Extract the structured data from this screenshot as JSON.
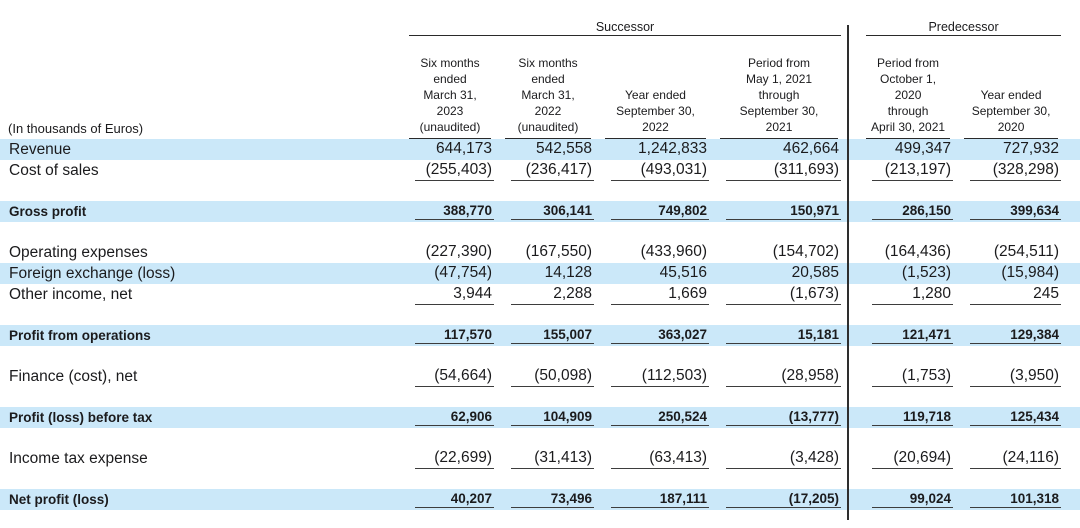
{
  "document": {
    "type": "income-statement-table",
    "unit_label": "(In thousands of Euros)"
  },
  "colors": {
    "row_highlight": "#cbe8f9",
    "rule": "#2a2a2a",
    "text": "#1b1b1d"
  },
  "table": {
    "group_headers": [
      {
        "label": "Successor",
        "span": 4
      },
      {
        "label": "Predecessor",
        "span": 2
      }
    ],
    "columns": [
      {
        "header": "Six months\nended\nMarch 31,\n2023\n(unaudited)"
      },
      {
        "header": "Six months\nended\nMarch 31,\n2022\n(unaudited)"
      },
      {
        "header": "Year ended\nSeptember 30,\n2022"
      },
      {
        "header": "Period from\nMay 1, 2021\nthrough\nSeptember 30,\n2021"
      },
      {
        "header": "Period from\nOctober 1, 2020\nthrough\nApril 30, 2021"
      },
      {
        "header": "Year ended\nSeptember 30,\n2020"
      }
    ],
    "rows": [
      {
        "label": "Revenue",
        "values": [
          "644,173",
          "542,558",
          "1,242,833",
          "462,664",
          "499,347",
          "727,932"
        ],
        "highlight": true
      },
      {
        "label": "Cost of sales",
        "values": [
          "(255,403)",
          "(236,417)",
          "(493,031)",
          "(311,693)",
          "(213,197)",
          "(328,298)"
        ],
        "underline": true
      },
      {
        "spacer": true
      },
      {
        "label": "Gross profit",
        "values": [
          "388,770",
          "306,141",
          "749,802",
          "150,971",
          "286,150",
          "399,634"
        ],
        "highlight": true,
        "bold": true,
        "underline": true
      },
      {
        "spacer": true
      },
      {
        "label": "Operating expenses",
        "values": [
          "(227,390)",
          "(167,550)",
          "(433,960)",
          "(154,702)",
          "(164,436)",
          "(254,511)"
        ]
      },
      {
        "label": "Foreign exchange (loss)",
        "values": [
          "(47,754)",
          "14,128",
          "45,516",
          "20,585",
          "(1,523)",
          "(15,984)"
        ],
        "highlight": true
      },
      {
        "label": "Other income, net",
        "values": [
          "3,944",
          "2,288",
          "1,669",
          "(1,673)",
          "1,280",
          "245"
        ],
        "underline": true
      },
      {
        "spacer": true
      },
      {
        "label": "Profit from operations",
        "values": [
          "117,570",
          "155,007",
          "363,027",
          "15,181",
          "121,471",
          "129,384"
        ],
        "highlight": true,
        "bold": true,
        "underline": true
      },
      {
        "spacer": true
      },
      {
        "label": "Finance (cost), net",
        "values": [
          "(54,664)",
          "(50,098)",
          "(112,503)",
          "(28,958)",
          "(1,753)",
          "(3,950)"
        ],
        "underline": true
      },
      {
        "spacer": true
      },
      {
        "label": "Profit (loss) before tax",
        "values": [
          "62,906",
          "104,909",
          "250,524",
          "(13,777)",
          "119,718",
          "125,434"
        ],
        "highlight": true,
        "bold": true,
        "underline": true
      },
      {
        "spacer": true
      },
      {
        "label": "Income tax expense",
        "values": [
          "(22,699)",
          "(31,413)",
          "(63,413)",
          "(3,428)",
          "(20,694)",
          "(24,116)"
        ],
        "underline": true
      },
      {
        "spacer": true
      },
      {
        "label": "Net profit (loss)",
        "values": [
          "40,207",
          "73,496",
          "187,111",
          "(17,205)",
          "99,024",
          "101,318"
        ],
        "highlight": true,
        "bold": true,
        "underline": true
      }
    ]
  }
}
